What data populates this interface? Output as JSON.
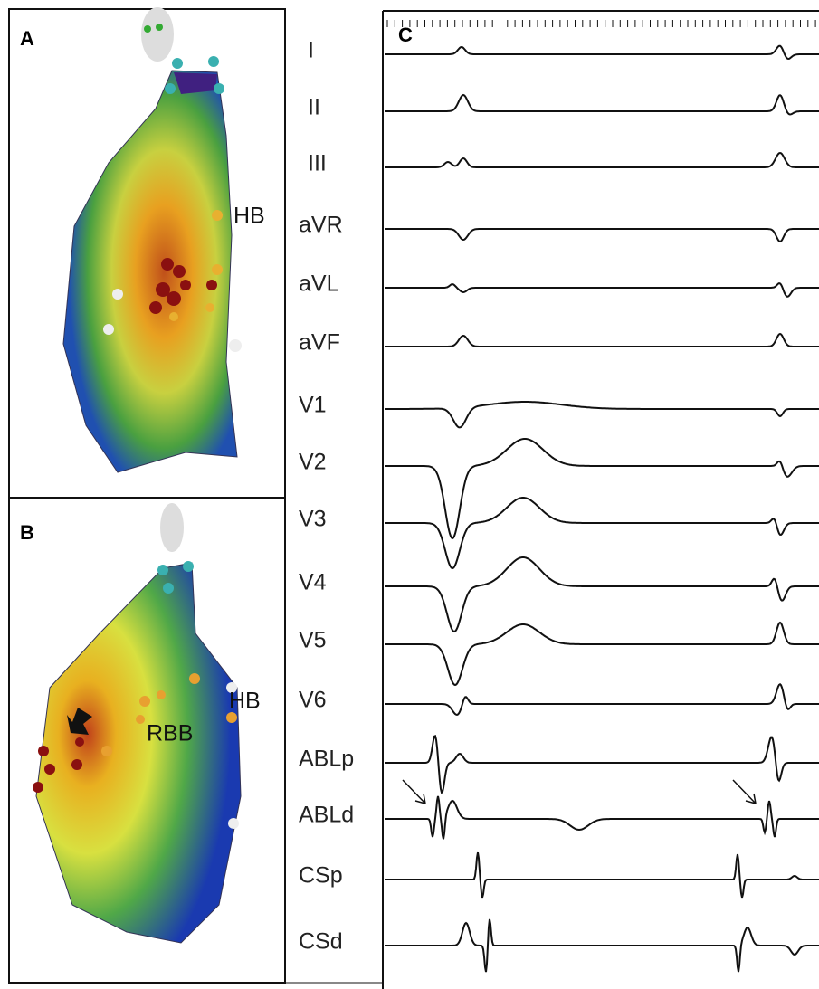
{
  "panels": {
    "a": {
      "label": "A",
      "annotations": [
        "HB"
      ]
    },
    "b": {
      "label": "B",
      "annotations": [
        "HB",
        "RBB"
      ]
    },
    "c": {
      "label": "C",
      "leads": [
        "I",
        "II",
        "III",
        "aVR",
        "aVL",
        "aVF",
        "V1",
        "V2",
        "V3",
        "V4",
        "V5",
        "V6",
        "ABLp",
        "ABLd",
        "CSp",
        "CSd"
      ]
    }
  }
}
